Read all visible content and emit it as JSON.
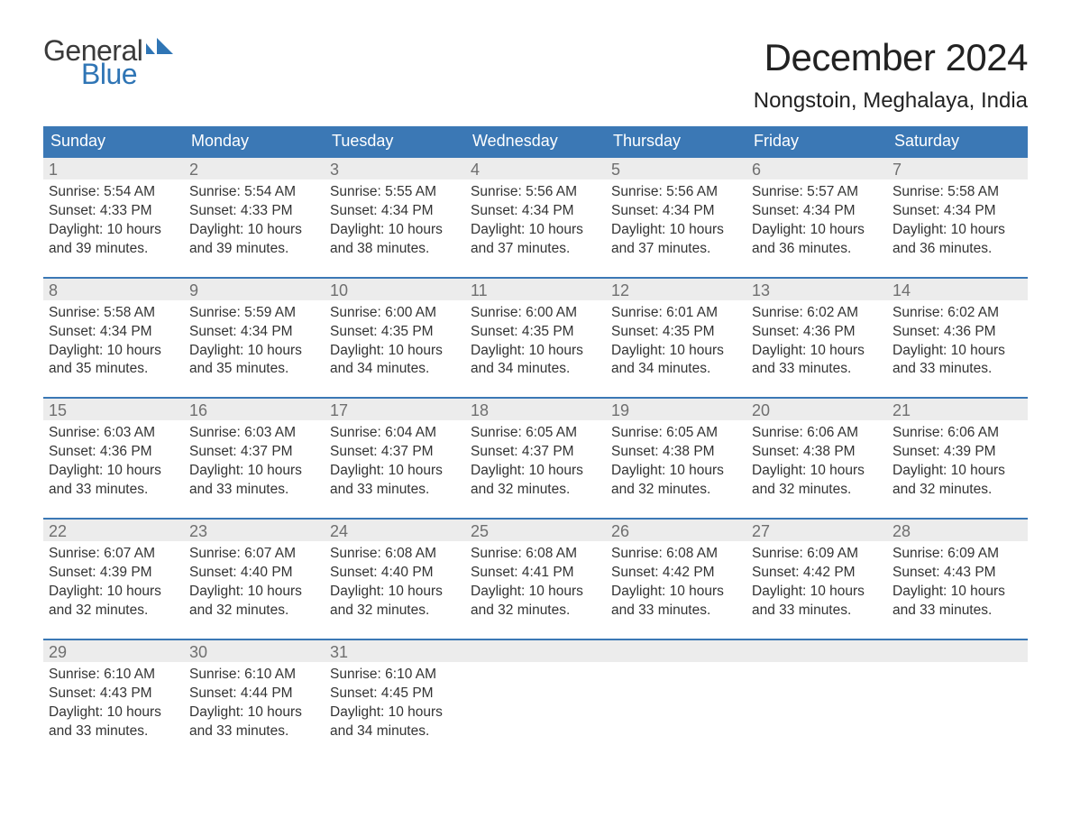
{
  "brand": {
    "word1": "General",
    "word2": "Blue"
  },
  "colors": {
    "brand_blue": "#2f75b5",
    "header_blue": "#3b78b5",
    "stripe_gray": "#ececec",
    "text": "#333333",
    "day_num": "#6f6f6f",
    "background": "#ffffff"
  },
  "title": "December 2024",
  "location": "Nongstoin, Meghalaya, India",
  "days_of_week": [
    "Sunday",
    "Monday",
    "Tuesday",
    "Wednesday",
    "Thursday",
    "Friday",
    "Saturday"
  ],
  "weeks": [
    [
      {
        "n": "1",
        "sunrise": "Sunrise: 5:54 AM",
        "sunset": "Sunset: 4:33 PM",
        "day1": "Daylight: 10 hours",
        "day2": "and 39 minutes."
      },
      {
        "n": "2",
        "sunrise": "Sunrise: 5:54 AM",
        "sunset": "Sunset: 4:33 PM",
        "day1": "Daylight: 10 hours",
        "day2": "and 39 minutes."
      },
      {
        "n": "3",
        "sunrise": "Sunrise: 5:55 AM",
        "sunset": "Sunset: 4:34 PM",
        "day1": "Daylight: 10 hours",
        "day2": "and 38 minutes."
      },
      {
        "n": "4",
        "sunrise": "Sunrise: 5:56 AM",
        "sunset": "Sunset: 4:34 PM",
        "day1": "Daylight: 10 hours",
        "day2": "and 37 minutes."
      },
      {
        "n": "5",
        "sunrise": "Sunrise: 5:56 AM",
        "sunset": "Sunset: 4:34 PM",
        "day1": "Daylight: 10 hours",
        "day2": "and 37 minutes."
      },
      {
        "n": "6",
        "sunrise": "Sunrise: 5:57 AM",
        "sunset": "Sunset: 4:34 PM",
        "day1": "Daylight: 10 hours",
        "day2": "and 36 minutes."
      },
      {
        "n": "7",
        "sunrise": "Sunrise: 5:58 AM",
        "sunset": "Sunset: 4:34 PM",
        "day1": "Daylight: 10 hours",
        "day2": "and 36 minutes."
      }
    ],
    [
      {
        "n": "8",
        "sunrise": "Sunrise: 5:58 AM",
        "sunset": "Sunset: 4:34 PM",
        "day1": "Daylight: 10 hours",
        "day2": "and 35 minutes."
      },
      {
        "n": "9",
        "sunrise": "Sunrise: 5:59 AM",
        "sunset": "Sunset: 4:34 PM",
        "day1": "Daylight: 10 hours",
        "day2": "and 35 minutes."
      },
      {
        "n": "10",
        "sunrise": "Sunrise: 6:00 AM",
        "sunset": "Sunset: 4:35 PM",
        "day1": "Daylight: 10 hours",
        "day2": "and 34 minutes."
      },
      {
        "n": "11",
        "sunrise": "Sunrise: 6:00 AM",
        "sunset": "Sunset: 4:35 PM",
        "day1": "Daylight: 10 hours",
        "day2": "and 34 minutes."
      },
      {
        "n": "12",
        "sunrise": "Sunrise: 6:01 AM",
        "sunset": "Sunset: 4:35 PM",
        "day1": "Daylight: 10 hours",
        "day2": "and 34 minutes."
      },
      {
        "n": "13",
        "sunrise": "Sunrise: 6:02 AM",
        "sunset": "Sunset: 4:36 PM",
        "day1": "Daylight: 10 hours",
        "day2": "and 33 minutes."
      },
      {
        "n": "14",
        "sunrise": "Sunrise: 6:02 AM",
        "sunset": "Sunset: 4:36 PM",
        "day1": "Daylight: 10 hours",
        "day2": "and 33 minutes."
      }
    ],
    [
      {
        "n": "15",
        "sunrise": "Sunrise: 6:03 AM",
        "sunset": "Sunset: 4:36 PM",
        "day1": "Daylight: 10 hours",
        "day2": "and 33 minutes."
      },
      {
        "n": "16",
        "sunrise": "Sunrise: 6:03 AM",
        "sunset": "Sunset: 4:37 PM",
        "day1": "Daylight: 10 hours",
        "day2": "and 33 minutes."
      },
      {
        "n": "17",
        "sunrise": "Sunrise: 6:04 AM",
        "sunset": "Sunset: 4:37 PM",
        "day1": "Daylight: 10 hours",
        "day2": "and 33 minutes."
      },
      {
        "n": "18",
        "sunrise": "Sunrise: 6:05 AM",
        "sunset": "Sunset: 4:37 PM",
        "day1": "Daylight: 10 hours",
        "day2": "and 32 minutes."
      },
      {
        "n": "19",
        "sunrise": "Sunrise: 6:05 AM",
        "sunset": "Sunset: 4:38 PM",
        "day1": "Daylight: 10 hours",
        "day2": "and 32 minutes."
      },
      {
        "n": "20",
        "sunrise": "Sunrise: 6:06 AM",
        "sunset": "Sunset: 4:38 PM",
        "day1": "Daylight: 10 hours",
        "day2": "and 32 minutes."
      },
      {
        "n": "21",
        "sunrise": "Sunrise: 6:06 AM",
        "sunset": "Sunset: 4:39 PM",
        "day1": "Daylight: 10 hours",
        "day2": "and 32 minutes."
      }
    ],
    [
      {
        "n": "22",
        "sunrise": "Sunrise: 6:07 AM",
        "sunset": "Sunset: 4:39 PM",
        "day1": "Daylight: 10 hours",
        "day2": "and 32 minutes."
      },
      {
        "n": "23",
        "sunrise": "Sunrise: 6:07 AM",
        "sunset": "Sunset: 4:40 PM",
        "day1": "Daylight: 10 hours",
        "day2": "and 32 minutes."
      },
      {
        "n": "24",
        "sunrise": "Sunrise: 6:08 AM",
        "sunset": "Sunset: 4:40 PM",
        "day1": "Daylight: 10 hours",
        "day2": "and 32 minutes."
      },
      {
        "n": "25",
        "sunrise": "Sunrise: 6:08 AM",
        "sunset": "Sunset: 4:41 PM",
        "day1": "Daylight: 10 hours",
        "day2": "and 32 minutes."
      },
      {
        "n": "26",
        "sunrise": "Sunrise: 6:08 AM",
        "sunset": "Sunset: 4:42 PM",
        "day1": "Daylight: 10 hours",
        "day2": "and 33 minutes."
      },
      {
        "n": "27",
        "sunrise": "Sunrise: 6:09 AM",
        "sunset": "Sunset: 4:42 PM",
        "day1": "Daylight: 10 hours",
        "day2": "and 33 minutes."
      },
      {
        "n": "28",
        "sunrise": "Sunrise: 6:09 AM",
        "sunset": "Sunset: 4:43 PM",
        "day1": "Daylight: 10 hours",
        "day2": "and 33 minutes."
      }
    ],
    [
      {
        "n": "29",
        "sunrise": "Sunrise: 6:10 AM",
        "sunset": "Sunset: 4:43 PM",
        "day1": "Daylight: 10 hours",
        "day2": "and 33 minutes."
      },
      {
        "n": "30",
        "sunrise": "Sunrise: 6:10 AM",
        "sunset": "Sunset: 4:44 PM",
        "day1": "Daylight: 10 hours",
        "day2": "and 33 minutes."
      },
      {
        "n": "31",
        "sunrise": "Sunrise: 6:10 AM",
        "sunset": "Sunset: 4:45 PM",
        "day1": "Daylight: 10 hours",
        "day2": "and 34 minutes."
      },
      {
        "empty": true
      },
      {
        "empty": true
      },
      {
        "empty": true
      },
      {
        "empty": true
      }
    ]
  ]
}
